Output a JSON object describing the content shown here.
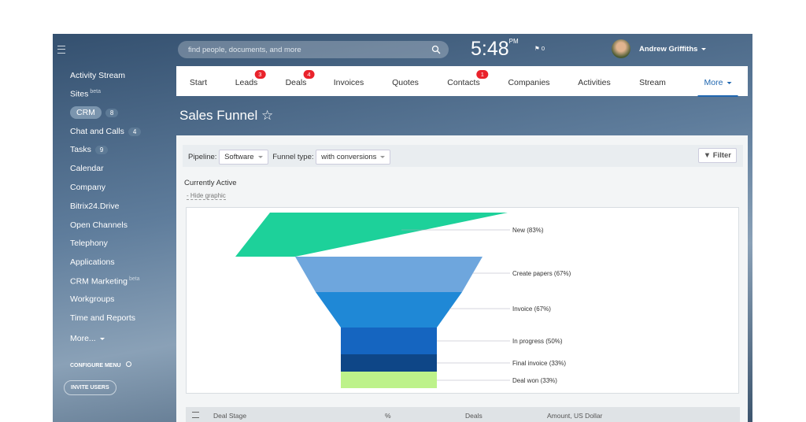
{
  "header": {
    "search": "find people, documents, and more",
    "time": "5:48",
    "ampm": "PM",
    "flag_count": 0,
    "user": "Andrew Griffiths"
  },
  "sidebar": {
    "items": [
      {
        "label": "Activity Stream"
      },
      {
        "label": "Sites",
        "sup": "beta"
      },
      {
        "label": "CRM",
        "badge": 8,
        "active": true
      },
      {
        "label": "Chat and Calls",
        "badge": 4
      },
      {
        "label": "Tasks",
        "badge": 9
      },
      {
        "label": "Calendar"
      },
      {
        "label": "Company"
      },
      {
        "label": "Bitrix24.Drive"
      },
      {
        "label": "Open Channels"
      },
      {
        "label": "Telephony"
      },
      {
        "label": "Applications"
      },
      {
        "label": "CRM Marketing",
        "sup": "beta"
      },
      {
        "label": "Workgroups"
      },
      {
        "label": "Time and Reports"
      },
      {
        "label": "More..."
      }
    ],
    "configure": "CONFIGURE MENU",
    "invite": "INVITE USERS"
  },
  "tabs": [
    {
      "label": "Start"
    },
    {
      "label": "Leads",
      "badge": 3
    },
    {
      "label": "Deals",
      "badge": 4
    },
    {
      "label": "Invoices"
    },
    {
      "label": "Quotes"
    },
    {
      "label": "Contacts",
      "badge": 1
    },
    {
      "label": "Companies"
    },
    {
      "label": "Activities"
    },
    {
      "label": "Stream"
    },
    {
      "label": "More",
      "active": true
    }
  ],
  "page": {
    "title": "Sales Funnel ☆",
    "pipeline_label": "Pipeline:",
    "pipeline": "Software",
    "funnel_type_label": "Funnel type:",
    "funnel_type": "with conversions",
    "filter": "Filter",
    "section": "Currently Active",
    "hide": "- Hide graphic"
  },
  "funnel": {
    "stages": [
      {
        "label": "New (83%)",
        "color": "#1dd19a"
      },
      {
        "label": "Create papers (67%)",
        "color": "#6ea6dd"
      },
      {
        "label": "Invoice (67%)",
        "color": "#1f88d6"
      },
      {
        "label": "In progress (50%)",
        "color": "#1565c0"
      },
      {
        "label": "Final invoice (33%)",
        "color": "#0e4687"
      },
      {
        "label": "Deal won (33%)",
        "color": "#bdf28a"
      }
    ]
  },
  "table": {
    "columns": [
      "Deal Stage",
      "%",
      "Deals",
      "Amount, US Dollar"
    ]
  }
}
